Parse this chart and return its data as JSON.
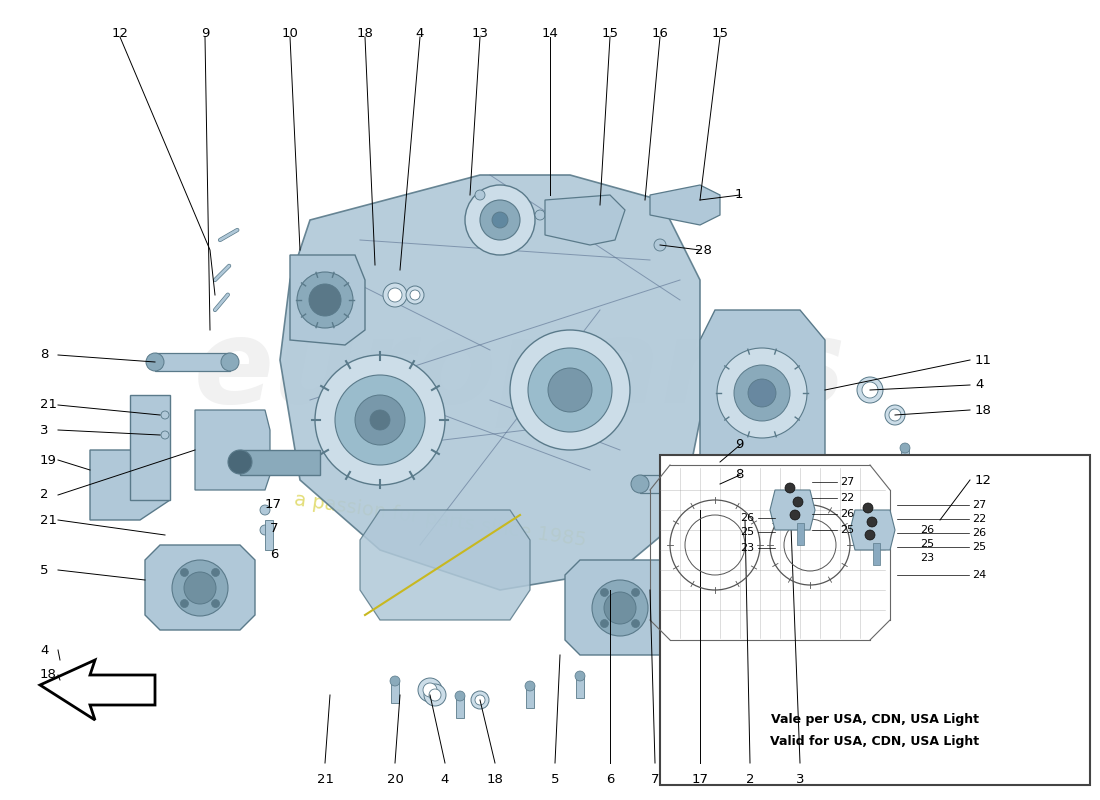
{
  "bg_color": "#ffffff",
  "pc": "#b0c8d8",
  "pcd": "#8aaabb",
  "pcl": "#ccdde8",
  "ec": "#5a7a8a",
  "lc": "#000000",
  "tc": "#000000",
  "fs": 9.5,
  "lw": 0.7,
  "inset_text1": "Vale per USA, CDN, USA Light",
  "inset_text2": "Valid for USA, CDN, USA Light",
  "wm1_color": "#e0e0e0",
  "wm2_color": "#d8d040"
}
